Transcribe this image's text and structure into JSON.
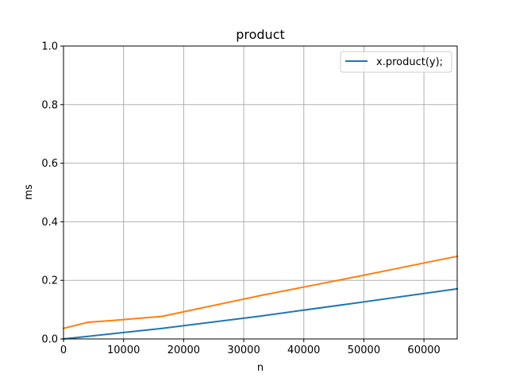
{
  "chart_data": {
    "type": "line",
    "title": "product",
    "xlabel": "n",
    "ylabel": "ms",
    "xlim": [
      0,
      65536
    ],
    "ylim": [
      0,
      1.0
    ],
    "grid": true,
    "legend_position": "top-right",
    "x_ticks": [
      0,
      10000,
      20000,
      30000,
      40000,
      50000,
      60000
    ],
    "x_tick_labels": [
      "0",
      "10000",
      "20000",
      "30000",
      "40000",
      "50000",
      "60000"
    ],
    "y_ticks": [
      0,
      0.2,
      0.4,
      0.6,
      0.8,
      1.0
    ],
    "y_tick_labels": [
      "0.0",
      "0.2",
      "0.4",
      "0.6",
      "0.8",
      "1.0"
    ],
    "series": [
      {
        "name": "x.product(y);",
        "color": "#1f77b4",
        "x": [
          0,
          4096,
          8192,
          16384,
          32768,
          49152,
          65536
        ],
        "y": [
          0.0,
          0.009,
          0.018,
          0.036,
          0.078,
          0.124,
          0.171
        ]
      },
      {
        "color": "#ff7f0e",
        "x": [
          0,
          4096,
          8192,
          16384,
          32768,
          49152,
          65536
        ],
        "y": [
          0.036,
          0.057,
          0.063,
          0.077,
          0.148,
          0.214,
          0.282
        ]
      }
    ]
  }
}
